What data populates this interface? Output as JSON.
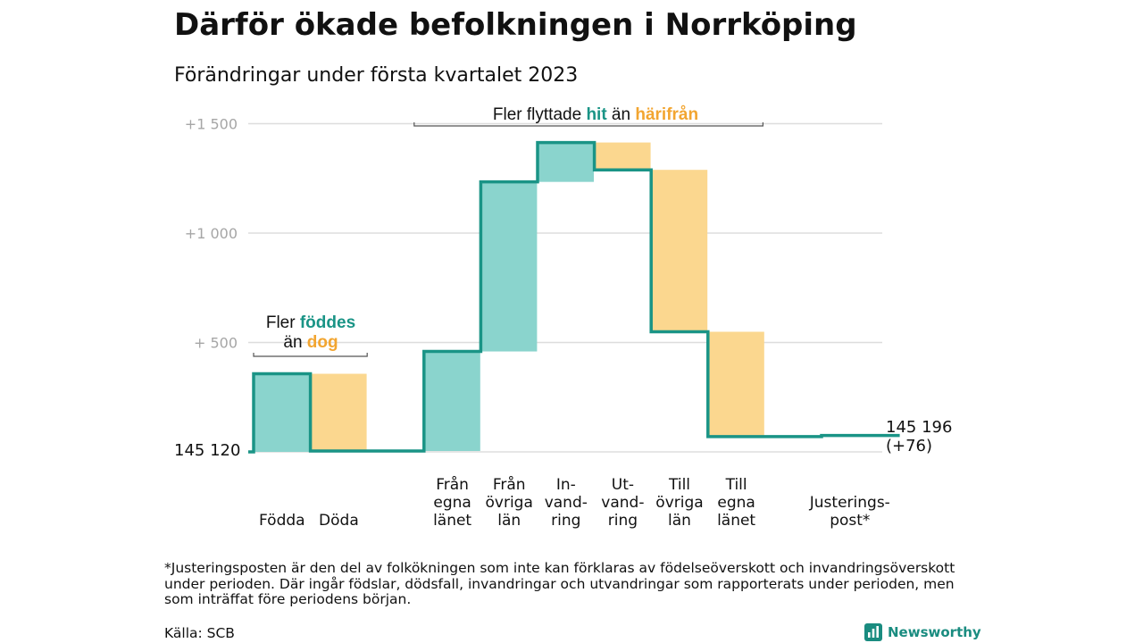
{
  "title": "Därför ökade befolkningen i Norrköping",
  "subtitle": "Förändringar under första kvartalet 2023",
  "colors": {
    "inflow": "#8ad4cd",
    "outflow": "#fbd78f",
    "line": "#1a9486",
    "hit": "#1a9486",
    "harifran": "#f2a530",
    "grid": "#dddddd",
    "tick": "#a6a6a6"
  },
  "chart_data": {
    "type": "waterfall",
    "ylim": [
      0,
      1500
    ],
    "yticks": [
      {
        "value": 500,
        "label": "+ 500"
      },
      {
        "value": 1000,
        "label": "+1 000"
      },
      {
        "value": 1500,
        "label": "+1 500"
      }
    ],
    "base_value": 145120,
    "base_label": "145 120",
    "end_value": 145196,
    "end_label": "145 196",
    "end_change_label": "(+76)",
    "steps": [
      {
        "label_lines": [
          "Födda"
        ],
        "change": 357,
        "kind": "inflow"
      },
      {
        "label_lines": [
          "Döda"
        ],
        "change": -353,
        "kind": "outflow"
      },
      {
        "label_lines": [],
        "change": 0,
        "kind": "spacer"
      },
      {
        "label_lines": [
          "Från",
          "egna",
          "länet"
        ],
        "change": 455,
        "kind": "inflow"
      },
      {
        "label_lines": [
          "Från",
          "övriga",
          "län"
        ],
        "change": 775,
        "kind": "inflow"
      },
      {
        "label_lines": [
          "In-",
          "vand-",
          "ring"
        ],
        "change": 180,
        "kind": "inflow"
      },
      {
        "label_lines": [
          "Ut-",
          "vand-",
          "ring"
        ],
        "change": -125,
        "kind": "outflow"
      },
      {
        "label_lines": [
          "Till",
          "övriga",
          "län"
        ],
        "change": -740,
        "kind": "outflow"
      },
      {
        "label_lines": [
          "Till",
          "egna",
          "länet"
        ],
        "change": -479,
        "kind": "outflow"
      },
      {
        "label_lines": [],
        "change": 0,
        "kind": "spacer"
      },
      {
        "label_lines": [
          "Justerings-",
          "post*"
        ],
        "change": 5,
        "kind": "adjustment"
      }
    ],
    "annotations": {
      "births": {
        "prefix": "Fler ",
        "highlight1": "föddes",
        "middle": "än ",
        "highlight2": "dog"
      },
      "migration": {
        "prefix": "Fler flyttade ",
        "highlight1": "hit",
        "middle": " än ",
        "highlight2": "härifrån"
      }
    }
  },
  "footnote": "*Justeringsposten är den del av folkökningen som inte kan förklaras av födelseöverskott och invandringsöverskott under perioden. Där ingår födslar, dödsfall, invandringar och utvandringar som rapporterats under perioden, men som inträffat före periodens början.",
  "source": "Källa: SCB",
  "brand": "Newsworthy"
}
